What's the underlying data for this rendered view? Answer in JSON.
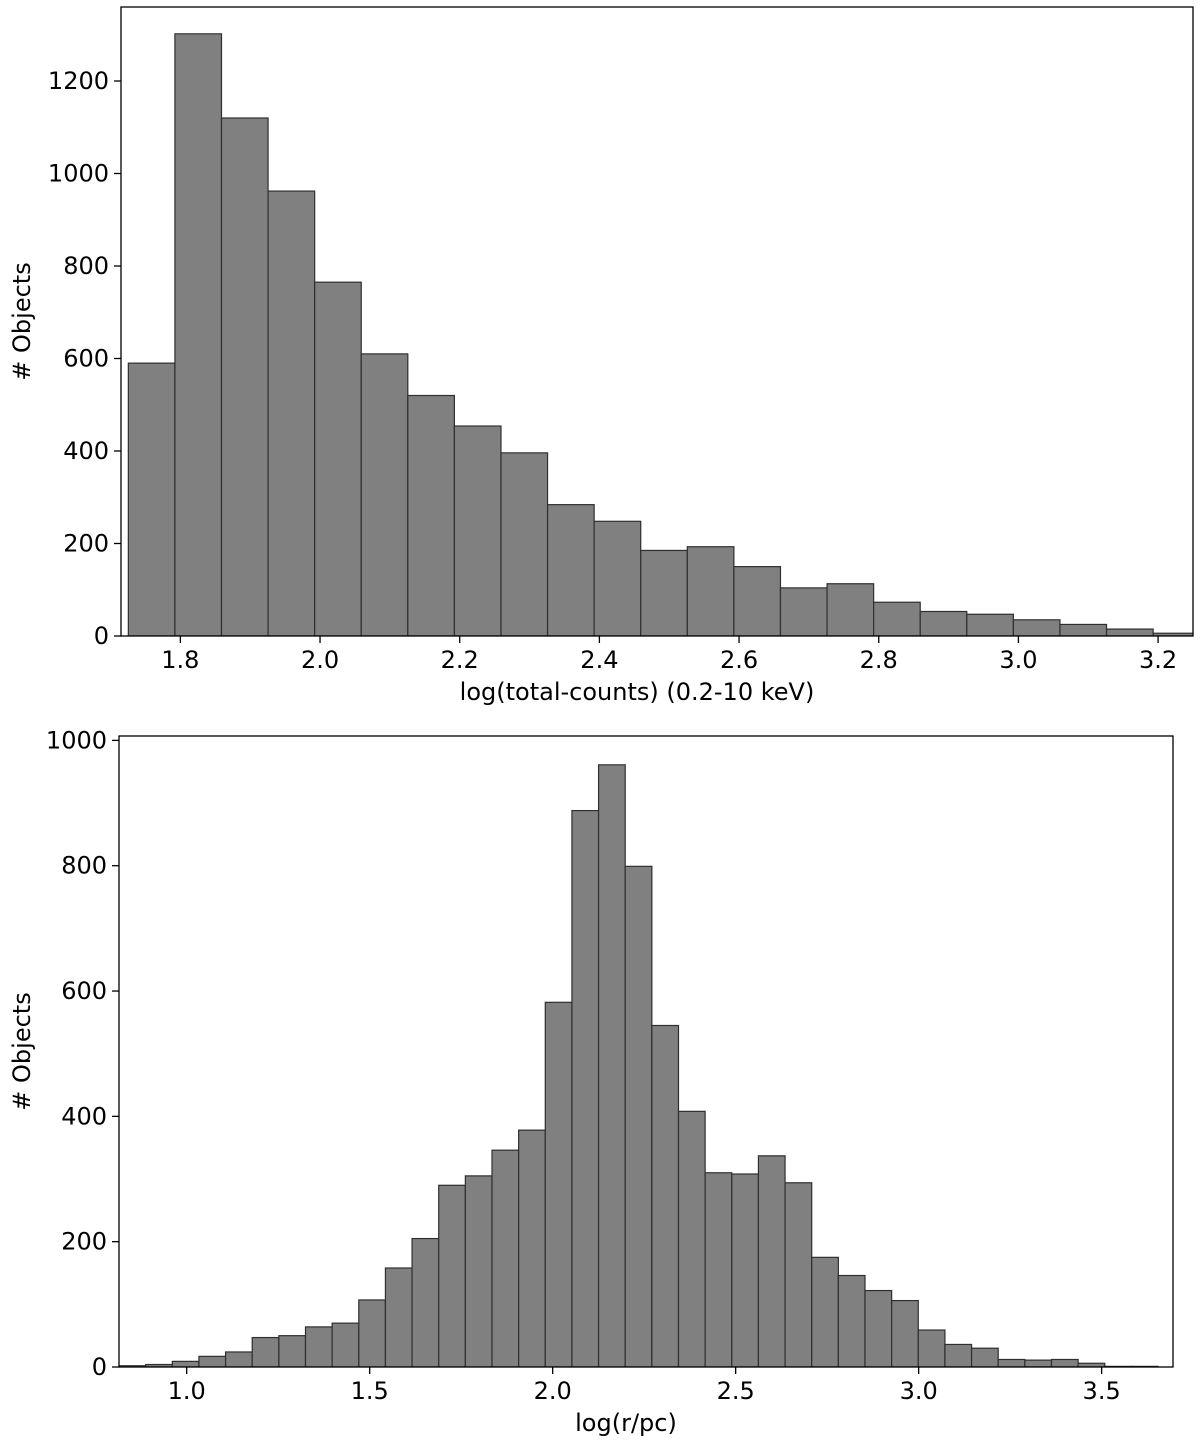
{
  "chart_data": [
    {
      "type": "bar",
      "title": "",
      "xlabel": "log(total-counts) (0.2-10 keV)",
      "ylabel": "# Objects",
      "xlim": [
        1.715,
        3.25
      ],
      "ylim": [
        0,
        1360
      ],
      "xticks": [
        1.8,
        2.0,
        2.2,
        2.4,
        2.6,
        2.8,
        3.0,
        3.2
      ],
      "xtick_labels": [
        "1.8",
        "2.0",
        "2.2",
        "2.4",
        "2.6",
        "2.8",
        "3.0",
        "3.2"
      ],
      "yticks": [
        0,
        200,
        400,
        600,
        800,
        1000,
        1200
      ],
      "ytick_labels": [
        "0",
        "200",
        "400",
        "600",
        "800",
        "1000",
        "1200"
      ],
      "bin_width": 0.0667,
      "bin_starts": [
        1.7255,
        1.7922,
        1.8589,
        1.9256,
        1.9923,
        2.059,
        2.1257,
        2.1924,
        2.2591,
        2.3258,
        2.3925,
        2.4592,
        2.5259,
        2.5926,
        2.6593,
        2.726,
        2.7927,
        2.8594,
        2.9261,
        2.9928,
        3.0595,
        3.1262,
        3.1929
      ],
      "values": [
        590,
        1302,
        1120,
        962,
        765,
        610,
        520,
        454,
        396,
        284,
        248,
        185,
        193,
        150,
        104,
        113,
        73,
        53,
        47,
        35,
        25,
        15,
        6
      ],
      "grid": false
    },
    {
      "type": "bar",
      "title": "",
      "xlabel": "log(r/pc)",
      "ylabel": "# Objects",
      "xlim": [
        0.815,
        3.695
      ],
      "ylim": [
        0,
        1007
      ],
      "xticks": [
        1.0,
        1.5,
        2.0,
        2.5,
        3.0,
        3.5
      ],
      "xtick_labels": [
        "1.0",
        "1.5",
        "2.0",
        "2.5",
        "3.0",
        "3.5"
      ],
      "yticks": [
        0,
        200,
        400,
        600,
        800,
        1000
      ],
      "ytick_labels": [
        "0",
        "200",
        "400",
        "600",
        "800",
        "1000"
      ],
      "bin_width": 0.0728,
      "bin_starts": [
        0.815,
        0.8878,
        0.9606,
        1.0334,
        1.1062,
        1.179,
        1.2518,
        1.3246,
        1.3974,
        1.4702,
        1.543,
        1.6158,
        1.6886,
        1.7614,
        1.8342,
        1.907,
        1.9798,
        2.0526,
        2.1254,
        2.1982,
        2.271,
        2.3438,
        2.4166,
        2.4894,
        2.5622,
        2.635,
        2.7078,
        2.7806,
        2.8534,
        2.9262,
        2.999,
        3.0718,
        3.1446,
        3.2174,
        3.2902,
        3.363,
        3.4358,
        3.5086,
        3.5814
      ],
      "values": [
        2,
        4,
        9,
        17,
        24,
        47,
        50,
        64,
        70,
        107,
        158,
        205,
        290,
        305,
        346,
        378,
        582,
        888,
        961,
        799,
        545,
        408,
        310,
        308,
        337,
        294,
        175,
        146,
        122,
        106,
        59,
        36,
        30,
        12,
        11,
        12,
        6,
        1,
        1
      ],
      "grid": false
    }
  ]
}
